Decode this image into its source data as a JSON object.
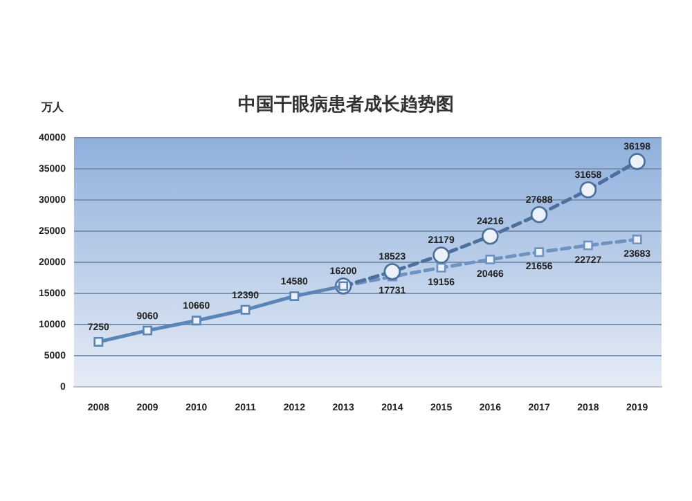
{
  "chart_data": {
    "type": "line",
    "title": "中国干眼病患者成长趋势图",
    "ylabel": "万人",
    "categories": [
      "2008",
      "2009",
      "2010",
      "2011",
      "2012",
      "2013",
      "2014",
      "2015",
      "2016",
      "2017",
      "2018",
      "2019"
    ],
    "series": [
      {
        "color": "#5a85b5",
        "line_style": "solid",
        "marker": "square",
        "values": [
          7250,
          9060,
          10660,
          12390,
          14580,
          16200,
          null,
          null,
          null,
          null,
          null,
          null
        ],
        "value_labels": [
          "7250",
          "9060",
          "10660",
          "12390",
          "14580",
          "16200",
          null,
          null,
          null,
          null,
          null,
          null
        ]
      },
      {
        "color": "#4d6f9c",
        "line_style": "dashed",
        "marker": "circle",
        "values": [
          null,
          null,
          null,
          null,
          null,
          16200,
          18523,
          21179,
          24216,
          27688,
          31658,
          36198
        ],
        "value_labels": [
          null,
          null,
          null,
          null,
          null,
          null,
          "18523",
          "21179",
          "24216",
          "27688",
          "31658",
          "36198"
        ]
      },
      {
        "color": "#6e93c0",
        "line_style": "dashed",
        "marker": "square",
        "values": [
          null,
          null,
          null,
          null,
          null,
          16200,
          17731,
          19156,
          20466,
          21656,
          22727,
          23683
        ],
        "value_labels": [
          null,
          null,
          null,
          null,
          null,
          null,
          "17731",
          "19156",
          "20466",
          "21656",
          "22727",
          "23683"
        ]
      }
    ],
    "ylim": [
      0,
      40000
    ],
    "yticks": [
      0,
      5000,
      10000,
      15000,
      20000,
      25000,
      30000,
      35000,
      40000
    ],
    "grid": "y",
    "legend": false
  }
}
